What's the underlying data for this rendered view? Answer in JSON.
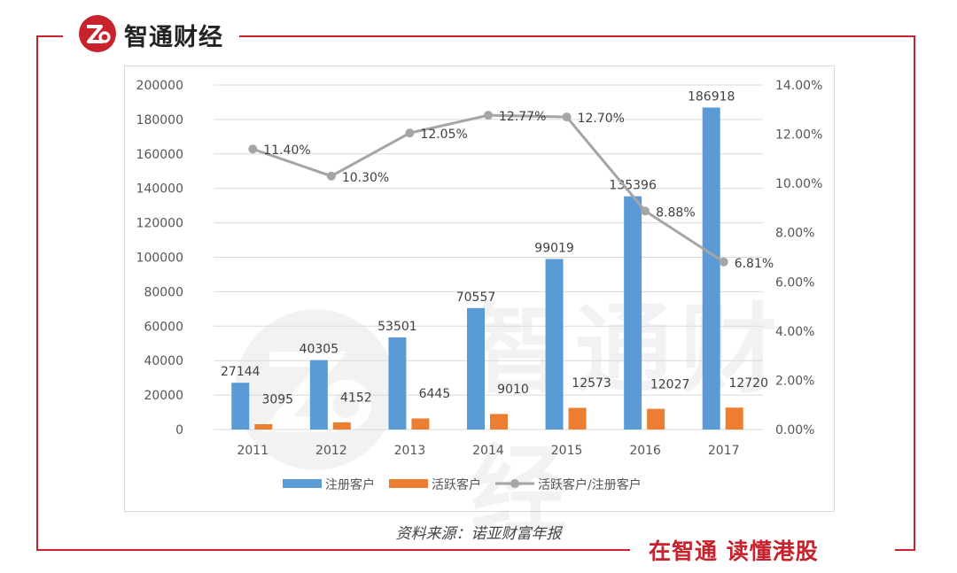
{
  "header": {
    "brand": "智通财经",
    "logo_icon": "zhitong-logo-icon",
    "accent": "#c8232c"
  },
  "watermark": {
    "text": "智通财经"
  },
  "footer": {
    "source": "资料来源：诺亚财富年报",
    "slogan": "在智通 读懂港股"
  },
  "chart_data": {
    "type": "bar",
    "categories": [
      "2011",
      "2012",
      "2013",
      "2014",
      "2015",
      "2016",
      "2017"
    ],
    "series": [
      {
        "name": "注册客户",
        "type": "bar",
        "axis": "left",
        "color": "#5b9bd5",
        "values": [
          27144,
          40305,
          53501,
          70557,
          99019,
          135396,
          186918
        ]
      },
      {
        "name": "活跃客户",
        "type": "bar",
        "axis": "left",
        "color": "#ed7d31",
        "values": [
          3095,
          4152,
          6445,
          9010,
          12573,
          12027,
          12720
        ]
      },
      {
        "name": "活跃客户/注册客户",
        "type": "line",
        "axis": "right",
        "color": "#a5a5a5",
        "values": [
          11.4,
          10.3,
          12.05,
          12.77,
          12.7,
          8.88,
          6.81
        ],
        "labels": [
          "11.40%",
          "10.30%",
          "12.05%",
          "12.77%",
          "12.70%",
          "8.88%",
          "6.81%"
        ]
      }
    ],
    "y_left": {
      "ylim": [
        0,
        200000
      ],
      "ticks": [
        "0",
        "20000",
        "40000",
        "60000",
        "80000",
        "100000",
        "120000",
        "140000",
        "160000",
        "180000",
        "200000"
      ]
    },
    "y_right": {
      "ylim": [
        0,
        14
      ],
      "ticks": [
        "0.00%",
        "2.00%",
        "4.00%",
        "6.00%",
        "8.00%",
        "10.00%",
        "12.00%",
        "14.00%"
      ]
    },
    "legend_position": "bottom",
    "grid": true
  }
}
